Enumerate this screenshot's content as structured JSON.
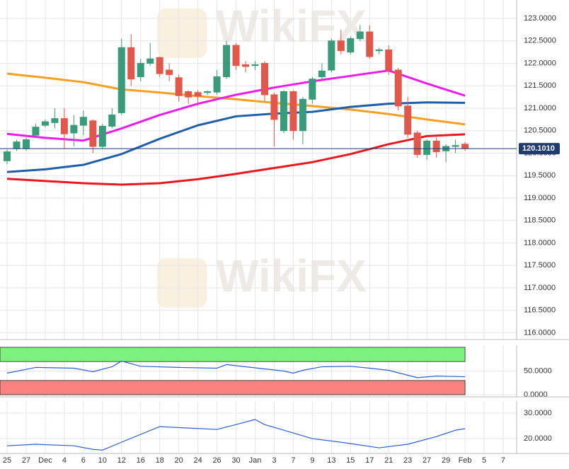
{
  "chart_data": [
    {
      "type": "candlestick",
      "watermark": "WikiFX",
      "up_color": "#3a9b7a",
      "down_color": "#e0584b",
      "grid": true,
      "xlim": [
        -0.742,
        53.41
      ],
      "xticks": [
        {
          "value": 0,
          "label": "25"
        },
        {
          "value": 2,
          "label": "27"
        },
        {
          "value": 4,
          "label": "Dec"
        },
        {
          "value": 6,
          "label": "4"
        },
        {
          "value": 8,
          "label": "6"
        },
        {
          "value": 10,
          "label": "10"
        },
        {
          "value": 12,
          "label": "12"
        },
        {
          "value": 14,
          "label": "16"
        },
        {
          "value": 16,
          "label": "18"
        },
        {
          "value": 18,
          "label": "20"
        },
        {
          "value": 20,
          "label": "24"
        },
        {
          "value": 22,
          "label": "26"
        },
        {
          "value": 24,
          "label": "30"
        },
        {
          "value": 26,
          "label": "Jan"
        },
        {
          "value": 28,
          "label": "3"
        },
        {
          "value": 30,
          "label": "7"
        },
        {
          "value": 32,
          "label": "9"
        },
        {
          "value": 34,
          "label": "13"
        },
        {
          "value": 36,
          "label": "15"
        },
        {
          "value": 38,
          "label": "17"
        },
        {
          "value": 40,
          "label": "21"
        },
        {
          "value": 42,
          "label": "23"
        },
        {
          "value": 44,
          "label": "27"
        },
        {
          "value": 46,
          "label": "29"
        },
        {
          "value": 48,
          "label": "Feb"
        },
        {
          "value": 50,
          "label": "5"
        },
        {
          "value": 52,
          "label": "7"
        }
      ],
      "ylim": [
        115.85,
        123.41
      ],
      "yticks": [
        {
          "value": 116,
          "label": "116.0000"
        },
        {
          "value": 116.5,
          "label": "116.5000"
        },
        {
          "value": 117,
          "label": "117.0000"
        },
        {
          "value": 117.5,
          "label": "117.5000"
        },
        {
          "value": 118,
          "label": "118.0000"
        },
        {
          "value": 118.5,
          "label": "118.5000"
        },
        {
          "value": 119,
          "label": "119.0000"
        },
        {
          "value": 119.5,
          "label": "119.5000"
        },
        {
          "value": 120,
          "label": "120.0000"
        },
        {
          "value": 120.5,
          "label": "120.5000"
        },
        {
          "value": 121,
          "label": "121.0000"
        },
        {
          "value": 121.5,
          "label": "121.5000"
        },
        {
          "value": 122,
          "label": "122.0000"
        },
        {
          "value": 122.5,
          "label": "122.5000"
        },
        {
          "value": 123,
          "label": "123.0000"
        }
      ],
      "last_price": {
        "value": 120.101,
        "label": "120.1010"
      },
      "last_price_color": "#1f3b73",
      "x": [
        0,
        1,
        2,
        3,
        4,
        5,
        6,
        7,
        8,
        9,
        10,
        11,
        12,
        13,
        14,
        15,
        16,
        17,
        18,
        19,
        20,
        21,
        22,
        23,
        24,
        25,
        26,
        27,
        28,
        29,
        30,
        31,
        32,
        33,
        34,
        35,
        36,
        37,
        38,
        39,
        40,
        41,
        42,
        43,
        44,
        45,
        46,
        47,
        48
      ],
      "open": [
        119.83,
        120.1,
        120.1,
        120.4,
        120.62,
        120.68,
        120.77,
        120.45,
        120.62,
        120.72,
        120.15,
        120.6,
        120.9,
        122.35,
        121.7,
        122.0,
        122.13,
        121.85,
        121.68,
        121.37,
        121.35,
        121.35,
        121.36,
        121.7,
        122.4,
        121.97,
        121.95,
        122.0,
        121.3,
        120.5,
        121.37,
        120.5,
        121.2,
        121.7,
        121.85,
        122.5,
        122.25,
        122.55,
        122.7,
        122.28,
        122.3,
        121.85,
        121.05,
        120.45,
        119.97,
        120.27,
        120.05,
        120.15,
        120.2
      ],
      "high": [
        120.08,
        120.3,
        120.35,
        120.65,
        120.75,
        121.0,
        121.0,
        120.85,
        120.95,
        120.75,
        120.65,
        121.0,
        122.55,
        122.65,
        122.1,
        122.45,
        122.15,
        122.0,
        121.75,
        121.4,
        121.4,
        121.4,
        121.85,
        122.5,
        122.45,
        122.05,
        122.05,
        122.05,
        121.35,
        121.4,
        121.4,
        121.25,
        121.7,
        122.0,
        122.55,
        122.75,
        122.6,
        122.85,
        122.85,
        122.35,
        122.4,
        121.9,
        121.25,
        120.5,
        120.3,
        120.35,
        120.2,
        120.3,
        120.25
      ],
      "low": [
        119.75,
        120.05,
        120.05,
        120.35,
        120.58,
        120.55,
        120.1,
        120.15,
        120.4,
        120.0,
        120.1,
        120.55,
        120.85,
        121.5,
        121.6,
        121.95,
        121.7,
        121.6,
        121.15,
        121.1,
        121.05,
        121.3,
        121.3,
        121.65,
        121.85,
        121.8,
        121.85,
        121.15,
        120.15,
        120.45,
        120.3,
        120.2,
        121.1,
        121.65,
        121.8,
        122.2,
        122.2,
        122.5,
        122.1,
        122.2,
        121.75,
        120.95,
        120.35,
        119.9,
        119.85,
        119.9,
        119.8,
        120.0,
        120.05
      ],
      "close": [
        120.03,
        120.25,
        120.3,
        120.58,
        120.7,
        120.77,
        120.43,
        120.62,
        120.8,
        120.15,
        120.6,
        120.85,
        122.35,
        121.65,
        122.0,
        122.1,
        121.77,
        121.75,
        121.28,
        121.25,
        121.27,
        121.37,
        121.7,
        122.4,
        121.95,
        121.93,
        121.97,
        121.3,
        120.75,
        121.37,
        120.5,
        121.2,
        121.65,
        121.83,
        122.5,
        122.28,
        122.55,
        122.7,
        122.15,
        122.3,
        121.85,
        121.05,
        120.42,
        119.97,
        120.27,
        120.03,
        120.15,
        120.17,
        120.101
      ],
      "series": [
        {
          "color": "#f5a020",
          "x": [
            0,
            4,
            8,
            12,
            16,
            20,
            24,
            28,
            32,
            36,
            40,
            44,
            48
          ],
          "values": [
            121.77,
            121.68,
            121.58,
            121.42,
            121.35,
            121.27,
            121.2,
            121.12,
            121.05,
            120.97,
            120.87,
            120.75,
            120.64
          ]
        },
        {
          "color": "#1f5fa8",
          "x": [
            0,
            4,
            8,
            12,
            16,
            20,
            24,
            28,
            32,
            36,
            40,
            44,
            48
          ],
          "values": [
            119.58,
            119.64,
            119.74,
            119.98,
            120.32,
            120.62,
            120.82,
            120.88,
            120.92,
            121.03,
            121.1,
            121.13,
            121.12
          ]
        },
        {
          "color": "#e81ee8",
          "x": [
            0,
            4,
            8,
            12,
            16,
            20,
            24,
            28,
            32,
            36,
            40,
            44,
            48
          ],
          "values": [
            120.43,
            120.34,
            120.28,
            120.55,
            120.85,
            121.1,
            121.3,
            121.46,
            121.6,
            121.72,
            121.84,
            121.55,
            121.28
          ]
        },
        {
          "color": "#e8191e",
          "x": [
            0,
            4,
            8,
            12,
            16,
            20,
            24,
            28,
            32,
            36,
            40,
            44,
            48
          ],
          "values": [
            119.43,
            119.38,
            119.33,
            119.3,
            119.33,
            119.42,
            119.54,
            119.67,
            119.8,
            119.98,
            120.2,
            120.38,
            120.42
          ]
        }
      ]
    },
    {
      "type": "line",
      "grid": true,
      "ylim": [
        -4.5,
        104.5
      ],
      "yticks": [
        {
          "value": 0,
          "label": "0.0000"
        },
        {
          "value": 50,
          "label": "50.0000"
        }
      ],
      "bands": [
        {
          "from": 70,
          "to": 100,
          "color": "#7ef27e"
        },
        {
          "from": 0,
          "to": 30,
          "color": "#fc8282"
        }
      ],
      "series": [
        {
          "color": "#2b5fd0",
          "x": [
            0,
            3,
            7,
            9,
            11,
            12,
            14,
            18,
            22,
            23,
            25,
            29,
            30,
            31,
            33,
            36,
            38,
            40,
            43,
            45,
            48
          ],
          "values": [
            45.5,
            57.6,
            56,
            48.5,
            59,
            71,
            60,
            57.6,
            56,
            63.6,
            59,
            50,
            45.5,
            51.5,
            59,
            60,
            56,
            51.5,
            36,
            39.4,
            38
          ]
        }
      ]
    },
    {
      "type": "line",
      "grid": true,
      "ylim": [
        14.2,
        34.7
      ],
      "yticks": [
        {
          "value": 20,
          "label": "20.0000"
        },
        {
          "value": 30,
          "label": "30.0000"
        }
      ],
      "series": [
        {
          "color": "#2b5fd0",
          "x": [
            0,
            3,
            7,
            9,
            10,
            12,
            16,
            22,
            24,
            26,
            27,
            32,
            35,
            39,
            42,
            45,
            47,
            48
          ],
          "values": [
            17.2,
            17.8,
            17.2,
            15.8,
            15.5,
            18.6,
            24.7,
            23.6,
            25.5,
            27.5,
            25.5,
            20,
            18.6,
            16.4,
            17.8,
            20.8,
            23.3,
            23.9
          ]
        }
      ]
    }
  ]
}
